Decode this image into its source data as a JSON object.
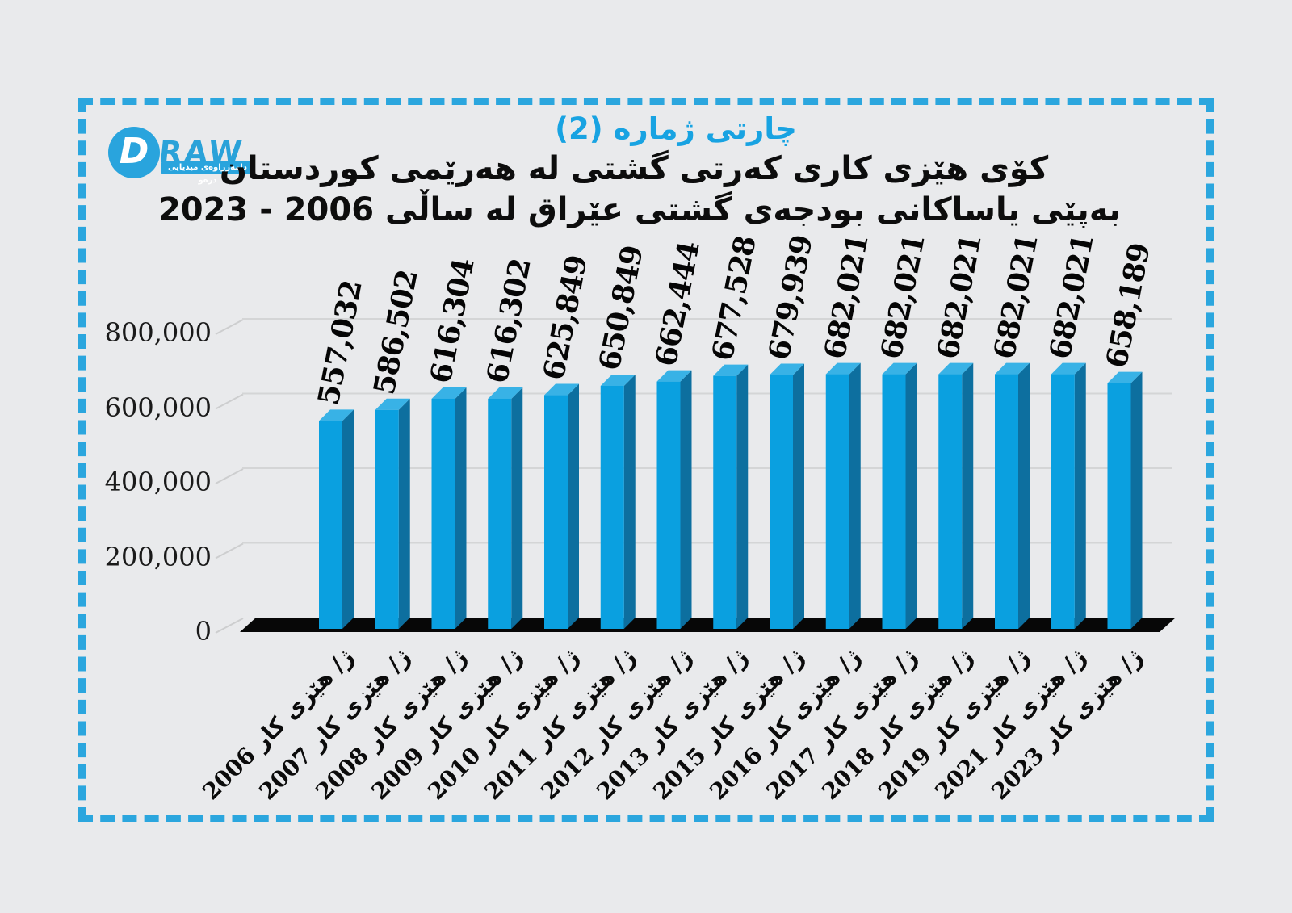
{
  "header": {
    "chart_label": "چارتی ژماره (2)",
    "title_line1": "کۆی هێزی کاری کەرتی گشتی لە هەرێمی کوردستان",
    "title_line2": "بەپێی یاساکانی بودجەی گشتی عێراق لە ساڵی 2006 - 2023"
  },
  "logo": {
    "monogram": "D",
    "wordmark": "RAW",
    "tagline": "دامەزراوەی میدیایی درەو"
  },
  "chart_data": {
    "type": "bar",
    "style": "3d-column",
    "title": "کۆی هێزی کاری کەرتی گشتی لە هەرێمی کوردستان بەپێی یاساکانی بودجەی گشتی عێراق لە ساڵی 2006 - 2023",
    "categories": [
      "ژ/ هێزی کار 2006",
      "ژ/ هێزی کار 2007",
      "ژ/ هێزی کار 2008",
      "ژ/ هێزی کار 2009",
      "ژ/ هێزی کار 2010",
      "ژ/ هێزی کار 2011",
      "ژ/ هێزی کار 2012",
      "ژ/ هێزی کار 2013",
      "ژ/ هێزی کار 2015",
      "ژ/ هێزی کار 2016",
      "ژ/ هێزی کار 2017",
      "ژ/ هێزی کار 2018",
      "ژ/ هێزی کار 2019",
      "ژ/ هێزی کار 2021",
      "ژ/ هێزی کار 2023"
    ],
    "values": [
      557032,
      586502,
      616304,
      616302,
      625849,
      650849,
      662444,
      677528,
      679939,
      682021,
      682021,
      682021,
      682021,
      682021,
      658189
    ],
    "value_labels": [
      "557,032",
      "586,502",
      "616,304",
      "616,302",
      "625,849",
      "650,849",
      "662,444",
      "677,528",
      "679,939",
      "682,021",
      "682,021",
      "682,021",
      "682,021",
      "682,021",
      "658,189"
    ],
    "ytick_values": [
      0,
      200000,
      400000,
      600000,
      800000
    ],
    "ytick_labels": [
      "0",
      "200,000",
      "400,000",
      "600,000",
      "800,000"
    ],
    "ylim": [
      0,
      800000
    ],
    "xlabel": "",
    "ylabel": "",
    "grid": true,
    "legend": false,
    "colors": {
      "bar_front": "#0aa0e0",
      "bar_side": "#0d6f9f",
      "bar_top": "#38b2e6",
      "floor": "#070707",
      "gridline": "#d4d5d6",
      "connector": "#cdcecf",
      "accent": "#2ba6de"
    }
  }
}
